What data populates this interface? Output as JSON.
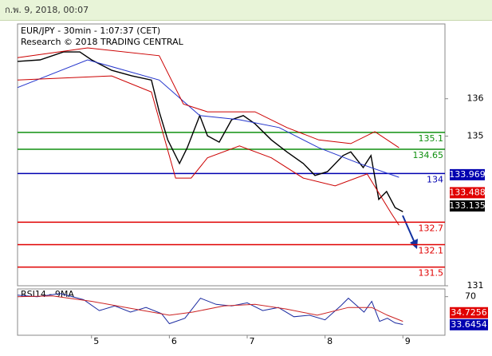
{
  "header": {
    "date": "ก.พ. 9, 2018, 00:07"
  },
  "chart_data": {
    "type": "line",
    "title": "EUR/JPY - 30min - 1:07:37 (CET)",
    "subtitle": "Research © 2018 TRADING CENTRAL",
    "xlim": [
      4.05,
      9.54
    ],
    "xticks": [
      5,
      6,
      7,
      8,
      9
    ],
    "ylim": [
      131,
      138
    ],
    "yticks": [
      136,
      135,
      131
    ],
    "series": [
      {
        "color": "#000000",
        "x": [
          4.05,
          4.34,
          4.64,
          4.85,
          5.0,
          5.26,
          5.52,
          5.77,
          5.87,
          5.98,
          6.13,
          6.23,
          6.39,
          6.49,
          6.64,
          6.8,
          6.95,
          7.1,
          7.31,
          7.51,
          7.72,
          7.87,
          8.03,
          8.23,
          8.33,
          8.49,
          8.59,
          8.69,
          8.79,
          8.9,
          9.0
        ],
        "values": [
          137.0,
          137.04,
          137.25,
          137.25,
          137.04,
          136.76,
          136.61,
          136.5,
          135.65,
          134.9,
          134.27,
          134.69,
          135.55,
          135.01,
          134.84,
          135.44,
          135.55,
          135.33,
          134.9,
          134.58,
          134.27,
          133.95,
          134.05,
          134.48,
          134.58,
          134.16,
          134.48,
          133.31,
          133.52,
          133.09,
          132.98
        ]
      },
      {
        "color": "#2233cc",
        "x": [
          4.05,
          4.95,
          5.87,
          6.39,
          6.9,
          7.41,
          7.92,
          8.44,
          8.95
        ],
        "values": [
          136.3,
          137.04,
          136.5,
          135.55,
          135.44,
          135.23,
          134.69,
          134.27,
          133.9
        ]
      },
      {
        "color": "#cc0000",
        "x": [
          4.05,
          4.95,
          5.87,
          6.18,
          6.49,
          7.1,
          7.51,
          7.92,
          8.33,
          8.64,
          8.95
        ],
        "values": [
          137.1,
          137.36,
          137.15,
          135.86,
          135.65,
          135.65,
          135.23,
          134.9,
          134.8,
          135.12,
          134.69
        ]
      },
      {
        "color": "#cc0000",
        "x": [
          4.05,
          5.26,
          5.77,
          6.08,
          6.28,
          6.49,
          6.9,
          7.31,
          7.72,
          8.13,
          8.54,
          8.85,
          8.95
        ],
        "values": [
          136.5,
          136.61,
          136.18,
          133.88,
          133.88,
          134.42,
          134.74,
          134.42,
          133.88,
          133.67,
          133.99,
          132.94,
          132.62
        ]
      }
    ],
    "levels": [
      {
        "value": 135.1,
        "color": "#109010"
      },
      {
        "value": 134.65,
        "color": "#109010"
      },
      {
        "value": 134,
        "color": "#0000b0"
      },
      {
        "value": 132.7,
        "color": "#e00000"
      },
      {
        "value": 132.1,
        "color": "#e00000"
      },
      {
        "value": 131.5,
        "color": "#e00000"
      }
    ],
    "price_labels": [
      {
        "value": 133.969,
        "color": "#0000b0"
      },
      {
        "value": 133.488,
        "color": "#e00000"
      },
      {
        "value": 133.135,
        "color": "#000000"
      }
    ],
    "rsi": {
      "title": "RSI14 - 9MA",
      "ylim": [
        20,
        80
      ],
      "yticks": [
        70
      ],
      "series": [
        {
          "color": "#1a2aa0",
          "x": [
            4.05,
            4.3,
            4.6,
            4.9,
            5.1,
            5.3,
            5.5,
            5.7,
            5.9,
            6.0,
            6.2,
            6.4,
            6.6,
            6.8,
            7.0,
            7.2,
            7.4,
            7.6,
            7.8,
            8.0,
            8.2,
            8.3,
            8.5,
            8.6,
            8.7,
            8.8,
            8.9,
            9.0
          ],
          "values": [
            72,
            70,
            74,
            66,
            52,
            58,
            50,
            56,
            48,
            35,
            42,
            68,
            60,
            58,
            62,
            52,
            56,
            44,
            46,
            40,
            58,
            68,
            50,
            64,
            38,
            42,
            36,
            34
          ]
        },
        {
          "color": "#cc2222",
          "x": [
            4.05,
            4.5,
            5.0,
            5.5,
            6.0,
            6.3,
            6.7,
            7.1,
            7.5,
            7.9,
            8.3,
            8.6,
            8.8,
            9.0
          ],
          "values": [
            70,
            71,
            64,
            55,
            46,
            50,
            58,
            60,
            54,
            46,
            56,
            56,
            46,
            38
          ]
        }
      ],
      "value_labels": [
        {
          "value": 34.7256,
          "color": "#e00000"
        },
        {
          "value": 33.6454,
          "color": "#0000b0"
        }
      ]
    }
  }
}
